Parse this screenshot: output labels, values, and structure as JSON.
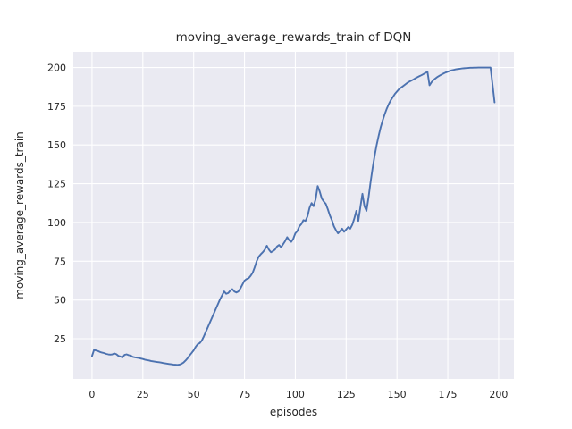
{
  "chart_data": {
    "type": "line",
    "title": "moving_average_rewards_train of DQN",
    "xlabel": "episodes",
    "ylabel": "moving_average_rewards_train",
    "xlim": [
      -9.2,
      207.5
    ],
    "ylim": [
      -0.95,
      210.1
    ],
    "xticks": [
      0,
      25,
      50,
      75,
      100,
      125,
      150,
      175,
      200
    ],
    "yticks": [
      25,
      50,
      75,
      100,
      125,
      150,
      175,
      200
    ],
    "grid": true,
    "legend_position": "none",
    "style": {
      "figure_bg": "#ffffff",
      "axes_bg": "#eaeaf2",
      "grid_color": "#ffffff",
      "line_color": "#4c72b0",
      "text_color": "#262626"
    },
    "series": [
      {
        "name": "moving_average_rewards_train",
        "x": [
          0,
          1,
          2,
          3,
          4,
          5,
          6,
          7,
          8,
          9,
          10,
          11,
          12,
          13,
          14,
          15,
          16,
          17,
          18,
          19,
          20,
          21,
          22,
          23,
          24,
          25,
          26,
          27,
          28,
          29,
          30,
          31,
          32,
          33,
          34,
          35,
          36,
          37,
          38,
          39,
          40,
          41,
          42,
          43,
          44,
          45,
          46,
          47,
          48,
          49,
          50,
          51,
          52,
          53,
          54,
          55,
          56,
          57,
          58,
          59,
          60,
          61,
          62,
          63,
          64,
          65,
          66,
          67,
          68,
          69,
          70,
          71,
          72,
          73,
          74,
          75,
          76,
          77,
          78,
          79,
          80,
          81,
          82,
          83,
          84,
          85,
          86,
          87,
          88,
          89,
          90,
          91,
          92,
          93,
          94,
          95,
          96,
          97,
          98,
          99,
          100,
          101,
          102,
          103,
          104,
          105,
          106,
          107,
          108,
          109,
          110,
          111,
          112,
          113,
          114,
          115,
          116,
          117,
          118,
          119,
          120,
          121,
          122,
          123,
          124,
          125,
          126,
          127,
          128,
          129,
          130,
          131,
          132,
          133,
          134,
          135,
          136,
          137,
          138,
          139,
          140,
          141,
          142,
          143,
          144,
          145,
          146,
          147,
          148,
          149,
          150,
          151,
          152,
          153,
          154,
          155,
          156,
          157,
          158,
          159,
          160,
          161,
          162,
          163,
          164,
          165,
          166,
          167,
          168,
          169,
          170,
          171,
          172,
          173,
          174,
          175,
          176,
          177,
          178,
          179,
          180,
          181,
          182,
          183,
          184,
          185,
          186,
          187,
          188,
          189,
          190,
          191,
          192,
          193,
          194,
          195,
          196,
          197,
          198
        ],
        "y": [
          13.8,
          17.8,
          17.4,
          17.0,
          16.4,
          16.0,
          15.7,
          15.2,
          14.9,
          14.7,
          14.9,
          15.5,
          15.0,
          13.9,
          13.5,
          12.9,
          14.6,
          14.9,
          14.4,
          14.2,
          13.3,
          13.0,
          12.8,
          12.6,
          12.2,
          11.9,
          11.5,
          11.2,
          11.0,
          10.6,
          10.4,
          10.2,
          10.0,
          9.8,
          9.6,
          9.3,
          9.1,
          8.9,
          8.7,
          8.5,
          8.3,
          8.2,
          8.1,
          8.3,
          8.8,
          9.6,
          10.9,
          12.4,
          14.2,
          15.8,
          17.5,
          19.8,
          21.5,
          22.2,
          23.8,
          26.5,
          29.5,
          32.5,
          35.5,
          38.5,
          41.5,
          44.5,
          47.5,
          50.5,
          53.0,
          55.5,
          54.0,
          54.5,
          56.0,
          57.0,
          55.5,
          54.8,
          55.5,
          57.5,
          60.0,
          62.5,
          63.5,
          64.0,
          65.5,
          67.5,
          71.0,
          75.0,
          78.0,
          79.5,
          80.8,
          82.5,
          85.0,
          82.5,
          80.8,
          81.5,
          82.5,
          84.5,
          85.5,
          84.0,
          86.0,
          88.0,
          90.5,
          88.5,
          87.5,
          89.5,
          93.0,
          94.5,
          97.5,
          99.0,
          101.5,
          101.0,
          104.0,
          109.5,
          112.5,
          110.5,
          115.0,
          123.5,
          120.0,
          115.5,
          113.5,
          112.0,
          108.5,
          104.5,
          101.5,
          97.5,
          95.0,
          93.0,
          94.5,
          96.0,
          94.0,
          95.5,
          97.0,
          96.0,
          98.5,
          102.5,
          107.5,
          101.0,
          110.0,
          118.5,
          110.5,
          107.5,
          116.0,
          126.0,
          135.0,
          143.0,
          150.0,
          156.0,
          161.5,
          166.0,
          170.0,
          173.5,
          176.5,
          179.0,
          181.0,
          183.0,
          184.5,
          186.0,
          187.0,
          188.0,
          189.0,
          190.0,
          190.8,
          191.5,
          192.2,
          193.0,
          193.7,
          194.4,
          195.0,
          195.7,
          196.5,
          197.2,
          188.5,
          190.5,
          192.0,
          193.0,
          194.0,
          194.8,
          195.5,
          196.2,
          196.8,
          197.3,
          197.8,
          198.2,
          198.5,
          198.8,
          199.0,
          199.2,
          199.4,
          199.5,
          199.6,
          199.7,
          199.8,
          199.8,
          199.9,
          199.9,
          200.0,
          200.0,
          200.0,
          200.0,
          200.0,
          200.0,
          200.0,
          189.0,
          177.5
        ]
      }
    ]
  }
}
